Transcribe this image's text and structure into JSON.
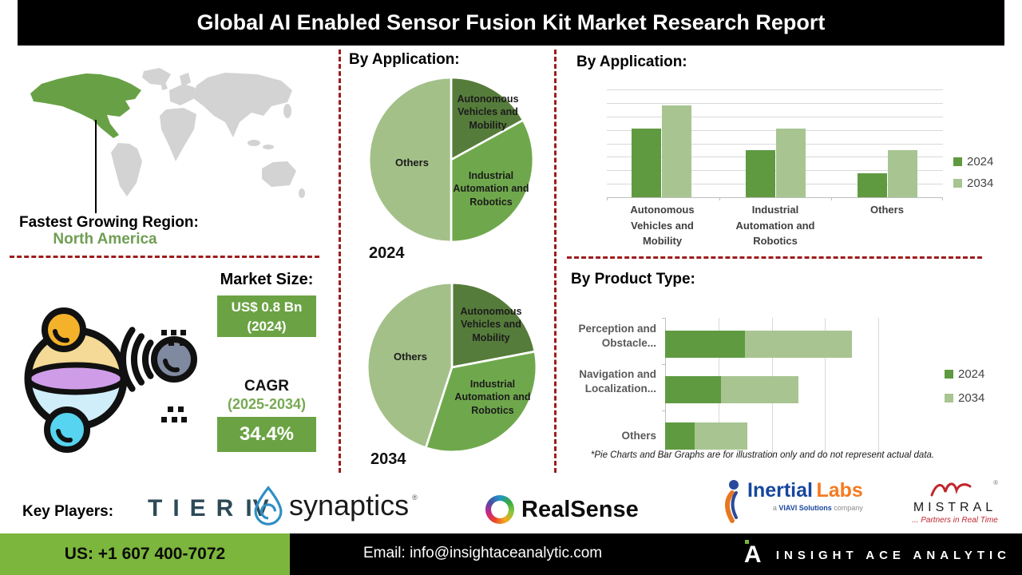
{
  "title": "Global AI Enabled Sensor Fusion Kit Market Research Report",
  "region": {
    "heading": "Fastest Growing Region:",
    "value": "North America"
  },
  "market": {
    "size_heading": "Market Size:",
    "size_line1": "US$ 0.8 Bn",
    "size_line2": "(2024)",
    "cagr_heading": "CAGR",
    "cagr_period": "(2025-2034)",
    "cagr_value": "34.4%"
  },
  "colors": {
    "accent_green": "#6ba344",
    "footer_green": "#7cb63c",
    "map_region_green": "#68a145",
    "dashed_red": "#9e1c1c",
    "pie_dark": "#567c3b",
    "pie_medium": "#6fa84c",
    "pie_light": "#a3c088",
    "bar_2024": "#5f9a40",
    "bar_2034": "#a8c591"
  },
  "chart_data": [
    {
      "id": "pie-2024",
      "type": "pie",
      "title": "By Application:",
      "year_label": "2024",
      "slices": [
        {
          "label": "Autonomous Vehicles and Mobility",
          "value": 17,
          "color": "#567c3b"
        },
        {
          "label": "Industrial Automation and Robotics",
          "value": 33,
          "color": "#6fa84c"
        },
        {
          "label": "Others",
          "value": 50,
          "color": "#a3c088"
        }
      ]
    },
    {
      "id": "pie-2034",
      "type": "pie",
      "year_label": "2034",
      "slices": [
        {
          "label": "Autonomous Vehicles and Mobility",
          "value": 22,
          "color": "#567c3b"
        },
        {
          "label": "Industrial Automation and Robotics",
          "value": 33,
          "color": "#6fa84c"
        },
        {
          "label": "Others",
          "value": 45,
          "color": "#a3c088"
        }
      ]
    },
    {
      "id": "application-bars",
      "type": "bar",
      "title": "By Application:",
      "categories": [
        "Autonomous Vehicles and Mobility",
        "Industrial Automation and Robotics",
        "Others"
      ],
      "series": [
        {
          "name": "2024",
          "color": "#5f9a40",
          "values": [
            5.1,
            3.5,
            1.8
          ]
        },
        {
          "name": "2034",
          "color": "#a8c591",
          "values": [
            6.8,
            5.1,
            3.5
          ]
        }
      ],
      "ylim": [
        0,
        8
      ],
      "grid": true,
      "legend_position": "right"
    },
    {
      "id": "product-type-bars",
      "type": "bar",
      "orientation": "horizontal-stacked",
      "title": "By Product Type:",
      "categories": [
        "Perception and Obstacle...",
        "Navigation and Localization...",
        "Others"
      ],
      "series": [
        {
          "name": "2024",
          "color": "#5f9a40",
          "values": [
            1.5,
            1.05,
            0.55
          ]
        },
        {
          "name": "2034",
          "color": "#a8c591",
          "values": [
            2.0,
            1.45,
            1.0
          ]
        }
      ],
      "xlim": [
        0,
        4
      ],
      "grid": true,
      "legend_position": "right",
      "note": "*Pie Charts and Bar Graphs are for illustration only and do not represent actual data."
    }
  ],
  "key_players": {
    "heading": "Key Players:",
    "tier_iv": {
      "part1": "TIER",
      "part2": "IV"
    },
    "synaptics": {
      "name": "synaptics",
      "reg": "®"
    },
    "realsense": {
      "name": "RealSense"
    },
    "inertial_labs": {
      "name_blue": "Inertial",
      "name_orange": "Labs",
      "tagline_prefix": "a",
      "tagline_brand": "VIAVI Solutions",
      "tagline_suffix": "company"
    },
    "mistral": {
      "name": "MISTRAL",
      "reg": "®",
      "tagline": "... Partners in Real Time"
    }
  },
  "footer": {
    "phone": "US: +1 607 400-7072",
    "email": "Email: info@insightaceanalytic.com",
    "brand": "INSIGHT ACE ANALYTIC"
  }
}
